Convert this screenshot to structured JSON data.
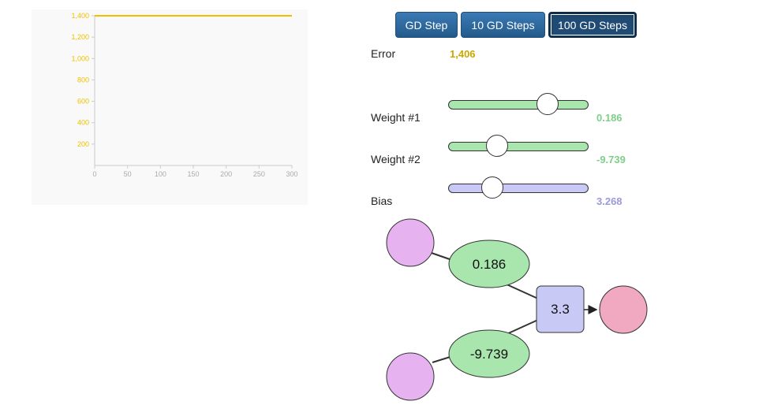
{
  "chart_data": {
    "type": "line",
    "title": "",
    "xlabel": "",
    "ylabel": "",
    "x_ticks": [
      0,
      50,
      100,
      150,
      200,
      250,
      300
    ],
    "y_ticks": [
      200,
      400,
      600,
      800,
      1000,
      1200,
      1400
    ],
    "y_tick_labels": [
      "200",
      "400",
      "600",
      "800",
      "1,000",
      "1,200",
      "1,400"
    ],
    "xlim": [
      0,
      300
    ],
    "ylim": [
      0,
      1400
    ],
    "series": [
      {
        "name": "Error",
        "x": [
          0,
          300
        ],
        "y": [
          1406,
          1406
        ],
        "color": "#f0c000"
      }
    ]
  },
  "buttons": {
    "step1": "GD Step",
    "step10": "10 GD Steps",
    "step100": "100 GD Steps"
  },
  "params": {
    "error": {
      "label": "Error",
      "value": "1,406",
      "color": "#c9a800"
    },
    "weight1": {
      "label": "Weight #1",
      "value": "0.186",
      "color": "#7fcf8a",
      "fill": "#a8e6ae",
      "level": 0.7
    },
    "weight2": {
      "label": "Weight #2",
      "value": "-9.739",
      "color": "#7fcf8a",
      "fill": "#a8e6ae",
      "level": 0.34
    },
    "bias": {
      "label": "Bias",
      "value": "3.268",
      "color": "#9a9ad8",
      "fill": "#c9c9f5",
      "level": 0.31
    }
  },
  "network": {
    "w1": "0.186",
    "w2": "-9.739",
    "bias": "3.3",
    "colors": {
      "input": "#e6b3f0",
      "weight": "#a8e6ae",
      "bias": "#c9c9f5",
      "output": "#f0a9c0"
    }
  }
}
